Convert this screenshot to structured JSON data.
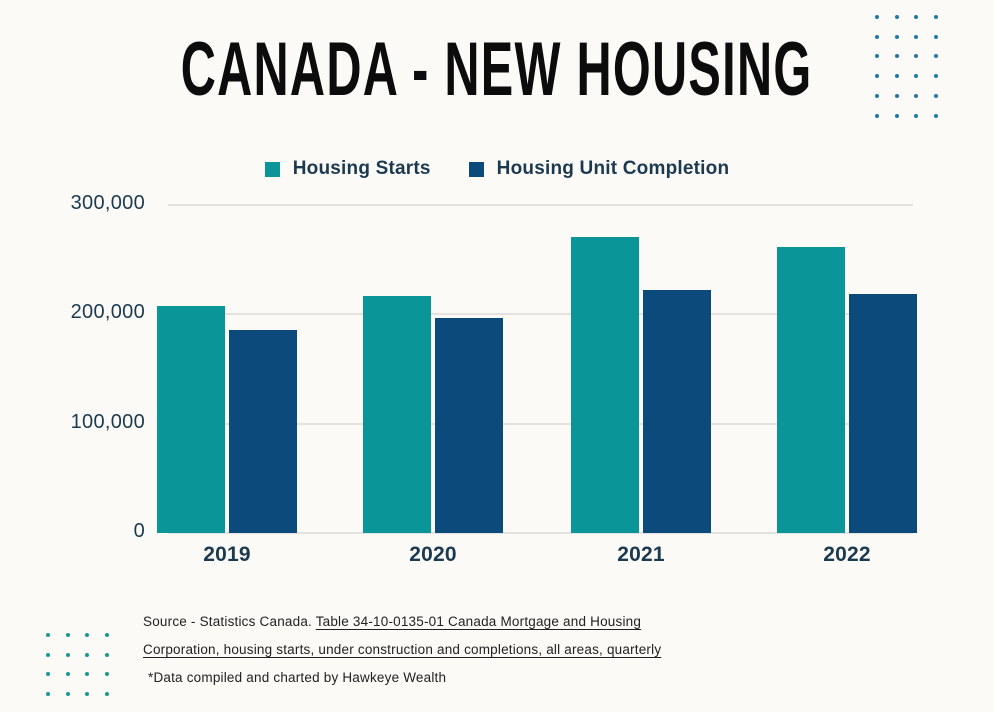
{
  "title": "CANADA - NEW HOUSING",
  "chart_data": {
    "type": "bar",
    "title": "CANADA - NEW HOUSING",
    "categories": [
      "2019",
      "2020",
      "2021",
      "2022"
    ],
    "series": [
      {
        "name": "Housing Starts",
        "color": "#0a9599",
        "values": [
          208000,
          217000,
          271000,
          262000
        ]
      },
      {
        "name": "Housing Unit Completion",
        "color": "#0d4a7c",
        "values": [
          186000,
          197000,
          222000,
          219000
        ]
      }
    ],
    "xlabel": "",
    "ylabel": "",
    "ylim": [
      0,
      300000
    ],
    "yticks": [
      0,
      100000,
      200000,
      300000
    ],
    "ytick_labels": [
      "0",
      "100,000",
      "200,000",
      "300,000"
    ],
    "grid": true,
    "gridline_color": "#e3e2de",
    "legend_position": "top",
    "axis_text_color": "#1b3a50"
  },
  "source": {
    "line1_plain": "Source - Statistics Canada. ",
    "line1_link": "Table 34-10-0135-01 Canada Mortgage and Housing",
    "line2_link": "Corporation, housing starts, under construction and completions, all areas, quarterly",
    "line3": "*Data compiled and charted by Hawkeye Wealth"
  },
  "decor": {
    "top_right_dots": {
      "rows": 6,
      "cols": 4,
      "color": "#2179a6"
    },
    "bottom_left_dots": {
      "rows": 4,
      "cols": 4,
      "color": "#1b998f"
    }
  },
  "page": {
    "background": "#fbfaf6",
    "title_color": "#0c0c0c"
  }
}
